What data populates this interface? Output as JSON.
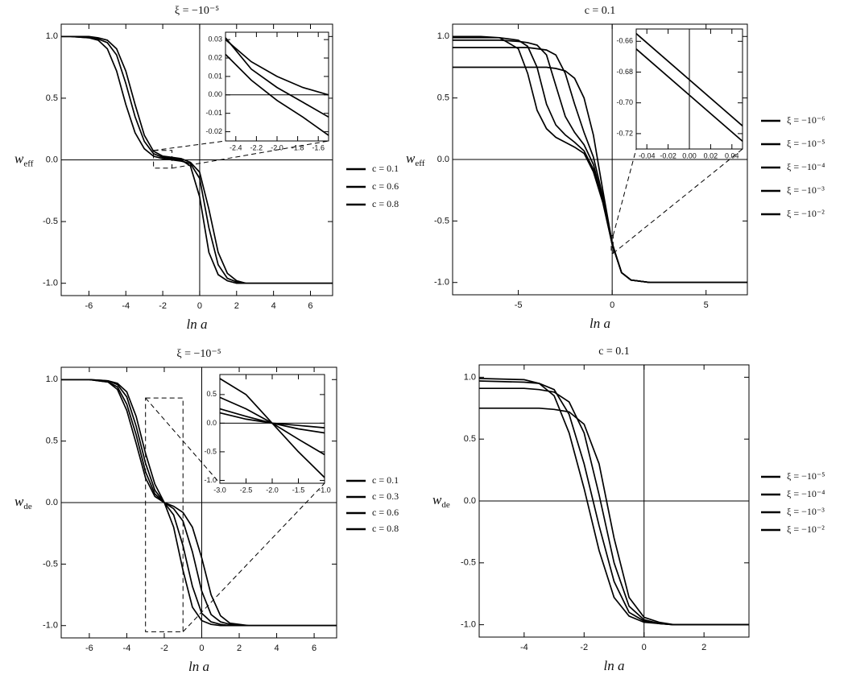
{
  "chart_data": [
    {
      "type": "line",
      "title": "ξ = −10⁻⁵",
      "xlabel": "ln a",
      "ylabel": "w",
      "ylabel_subscript": "eff",
      "x": [
        -7.5,
        -7,
        -6,
        -5.5,
        -5,
        -4.5,
        -4,
        -3.5,
        -3,
        -2.5,
        -2,
        -1.5,
        -1,
        -0.5,
        0,
        0.5,
        1,
        1.5,
        2,
        2.5,
        3,
        4,
        5,
        6,
        7.2
      ],
      "series": [
        {
          "name": "c = 0.1",
          "color": "#000000",
          "values": [
            1,
            1,
            0.99,
            0.97,
            0.9,
            0.72,
            0.45,
            0.22,
            0.09,
            0.03,
            0.01,
            0,
            -0.01,
            -0.03,
            -0.15,
            -0.55,
            -0.85,
            -0.96,
            -0.99,
            -1,
            -1,
            -1,
            -1,
            -1,
            -1
          ]
        },
        {
          "name": "c = 0.6",
          "color": "#000000",
          "values": [
            1,
            1,
            0.99,
            0.98,
            0.95,
            0.85,
            0.62,
            0.35,
            0.15,
            0.05,
            0.02,
            0.01,
            0,
            -0.05,
            -0.3,
            -0.75,
            -0.93,
            -0.98,
            -1,
            -1,
            -1,
            -1,
            -1,
            -1,
            -1
          ]
        },
        {
          "name": "c = 0.8",
          "color": "#000000",
          "values": [
            1,
            1,
            1,
            0.99,
            0.97,
            0.9,
            0.72,
            0.45,
            0.2,
            0.07,
            0.03,
            0.02,
            0.01,
            -0.02,
            -0.1,
            -0.4,
            -0.75,
            -0.92,
            -0.98,
            -1,
            -1,
            -1,
            -1,
            -1,
            -1
          ]
        }
      ],
      "xlim": [
        -7.5,
        7.2
      ],
      "ylim": [
        -1.1,
        1.1
      ],
      "xticks": [
        -6,
        -4,
        -2,
        0,
        2,
        4,
        6
      ],
      "yticks": [
        {
          "value": -1,
          "label": "-1.0"
        },
        -0.5,
        {
          "value": 0,
          "label": "0.0"
        },
        0.5,
        {
          "value": 1,
          "label": "1.0"
        }
      ]
    },
    {
      "type": "line",
      "x": [
        -2.5,
        -2.25,
        -2,
        -1.75,
        -1.5
      ],
      "series": [
        {
          "color": "#000000",
          "values": [
            0.03,
            0.018,
            0.01,
            0.004,
            0.0
          ]
        },
        {
          "color": "#000000",
          "values": [
            0.031,
            0.014,
            0.004,
            -0.004,
            -0.012
          ]
        },
        {
          "color": "#000000",
          "values": [
            0.022,
            0.008,
            -0.003,
            -0.012,
            -0.022
          ]
        }
      ],
      "xlim": [
        -2.5,
        -1.5
      ],
      "ylim": [
        -0.025,
        0.034
      ],
      "xticks": [
        -2.4,
        -2.2,
        {
          "value": -2,
          "label": "-2.0"
        },
        -1.8,
        -1.6
      ],
      "yticks": [
        -0.02,
        -0.01,
        {
          "value": 0,
          "label": "0.00"
        },
        0.01,
        0.02,
        0.03
      ]
    },
    {
      "type": "line",
      "title": "c = 0.1",
      "xlabel": "ln a",
      "ylabel": "w",
      "ylabel_subscript": "eff",
      "x": [
        -8.5,
        -7,
        -6,
        -5,
        -4.5,
        -4,
        -3.5,
        -3,
        -2.5,
        -2,
        -1.5,
        -1,
        -0.5,
        0,
        0.5,
        1,
        1.5,
        2,
        3,
        5,
        7.2
      ],
      "series": [
        {
          "name": "ξ = −10⁻⁶",
          "color": "#000000",
          "values": [
            1,
            1,
            0.99,
            0.9,
            0.7,
            0.4,
            0.25,
            0.18,
            0.14,
            0.1,
            0.05,
            -0.1,
            -0.35,
            -0.69,
            -0.92,
            -0.98,
            -0.99,
            -1,
            -1,
            -1,
            -1
          ]
        },
        {
          "name": "ξ = −10⁻⁵",
          "color": "#000000",
          "values": [
            0.99,
            0.99,
            0.99,
            0.97,
            0.92,
            0.75,
            0.45,
            0.28,
            0.2,
            0.14,
            0.07,
            -0.08,
            -0.34,
            -0.69,
            -0.92,
            -0.98,
            -0.99,
            -1,
            -1,
            -1,
            -1
          ]
        },
        {
          "name": "ξ = −10⁻⁴",
          "color": "#000000",
          "values": [
            0.97,
            0.97,
            0.97,
            0.96,
            0.95,
            0.93,
            0.85,
            0.6,
            0.35,
            0.22,
            0.12,
            -0.04,
            -0.33,
            -0.69,
            -0.92,
            -0.98,
            -0.99,
            -1,
            -1,
            -1,
            -1
          ]
        },
        {
          "name": "ξ = −10⁻³",
          "color": "#000000",
          "values": [
            0.91,
            0.91,
            0.91,
            0.91,
            0.91,
            0.9,
            0.89,
            0.85,
            0.7,
            0.45,
            0.22,
            0.02,
            -0.3,
            -0.69,
            -0.92,
            -0.98,
            -0.99,
            -1,
            -1,
            -1,
            -1
          ]
        },
        {
          "name": "ξ = −10⁻²",
          "color": "#000000",
          "values": [
            0.75,
            0.75,
            0.75,
            0.75,
            0.75,
            0.75,
            0.75,
            0.74,
            0.72,
            0.66,
            0.5,
            0.2,
            -0.25,
            -0.68,
            -0.92,
            -0.98,
            -0.99,
            -1,
            -1,
            -1,
            -1
          ]
        }
      ],
      "xlim": [
        -8.5,
        7.2
      ],
      "ylim": [
        -1.1,
        1.1
      ],
      "xticks": [
        -5,
        0,
        5
      ],
      "yticks": [
        {
          "value": -1,
          "label": "-1.0"
        },
        -0.5,
        {
          "value": 0,
          "label": "0.0"
        },
        0.5,
        {
          "value": 1,
          "label": "1.0"
        }
      ]
    },
    {
      "type": "line",
      "x": [
        -0.05,
        0.05
      ],
      "series": [
        {
          "color": "#000000",
          "values": [
            -0.655,
            -0.715
          ]
        },
        {
          "color": "#000000",
          "values": [
            -0.665,
            -0.725
          ]
        }
      ],
      "xlim": [
        -0.05,
        0.05
      ],
      "ylim": [
        -0.73,
        -0.652
      ],
      "xticks": [
        -0.04,
        -0.02,
        {
          "value": 0,
          "label": "0.00"
        },
        0.02,
        0.04
      ],
      "yticks": [
        -0.72,
        {
          "value": -0.7,
          "label": "-0.70"
        },
        -0.68,
        -0.66
      ]
    },
    {
      "type": "line",
      "title": "ξ = −10⁻⁵",
      "xlabel": "ln a",
      "ylabel": "w",
      "ylabel_subscript": "de",
      "x": [
        -7.5,
        -6,
        -5,
        -4.5,
        -4,
        -3.5,
        -3,
        -2.5,
        -2,
        -1.5,
        -1,
        -0.5,
        0,
        0.5,
        1,
        1.5,
        2,
        2.5,
        3,
        5,
        7.2
      ],
      "series": [
        {
          "name": "c = 0.1",
          "color": "#000000",
          "values": [
            1,
            1,
            0.99,
            0.97,
            0.9,
            0.7,
            0.4,
            0.15,
            0,
            -0.2,
            -0.55,
            -0.85,
            -0.96,
            -0.99,
            -1,
            -1,
            -1,
            -1,
            -1,
            -1,
            -1
          ]
        },
        {
          "name": "c = 0.3",
          "color": "#000000",
          "values": [
            1,
            1,
            0.99,
            0.96,
            0.86,
            0.62,
            0.32,
            0.1,
            0,
            -0.1,
            -0.35,
            -0.68,
            -0.9,
            -0.97,
            -0.99,
            -1,
            -1,
            -1,
            -1,
            -1,
            -1
          ]
        },
        {
          "name": "c = 0.6",
          "color": "#000000",
          "values": [
            1,
            1,
            0.98,
            0.94,
            0.8,
            0.55,
            0.25,
            0.07,
            0,
            -0.05,
            -0.15,
            -0.4,
            -0.72,
            -0.91,
            -0.97,
            -0.99,
            -1,
            -1,
            -1,
            -1,
            -1
          ]
        },
        {
          "name": "c = 0.8",
          "color": "#000000",
          "values": [
            1,
            1,
            0.98,
            0.92,
            0.75,
            0.48,
            0.2,
            0.05,
            0,
            -0.03,
            -0.08,
            -0.2,
            -0.45,
            -0.75,
            -0.92,
            -0.98,
            -0.99,
            -1,
            -1,
            -1,
            -1
          ]
        }
      ],
      "xlim": [
        -7.5,
        7.2
      ],
      "ylim": [
        -1.1,
        1.1
      ],
      "xticks": [
        -6,
        -4,
        -2,
        0,
        2,
        4,
        6
      ],
      "yticks": [
        {
          "value": -1,
          "label": "-1.0"
        },
        -0.5,
        {
          "value": 0,
          "label": "0.0"
        },
        0.5,
        {
          "value": 1,
          "label": "1.0"
        }
      ]
    },
    {
      "type": "line",
      "x": [
        -3,
        -2.5,
        -2,
        -1.5,
        -1
      ],
      "series": [
        {
          "color": "#000000",
          "values": [
            0.78,
            0.5,
            0,
            -0.5,
            -0.95
          ]
        },
        {
          "color": "#000000",
          "values": [
            0.45,
            0.25,
            0,
            -0.28,
            -0.55
          ]
        },
        {
          "color": "#000000",
          "values": [
            0.25,
            0.12,
            0,
            -0.1,
            -0.17
          ]
        },
        {
          "color": "#000000",
          "values": [
            0.18,
            0.07,
            0,
            -0.04,
            -0.08
          ]
        }
      ],
      "xlim": [
        -3,
        -1
      ],
      "ylim": [
        -1.05,
        0.85
      ],
      "xticks": [
        {
          "value": -3,
          "label": "-3.0"
        },
        -2.5,
        {
          "value": -2,
          "label": "-2.0"
        },
        -1.5,
        {
          "value": -1,
          "label": "-1.0"
        }
      ],
      "yticks": [
        {
          "value": -1,
          "label": "-1.0"
        },
        -0.5,
        {
          "value": 0,
          "label": "0.0"
        },
        0.5
      ]
    },
    {
      "type": "line",
      "title": "c = 0.1",
      "xlabel": "ln a",
      "ylabel": "w",
      "ylabel_subscript": "de",
      "x": [
        -5.5,
        -4,
        -3.5,
        -3,
        -2.5,
        -2,
        -1.5,
        -1,
        -0.5,
        0,
        0.5,
        1,
        2,
        3.5
      ],
      "series": [
        {
          "name": "ξ = −10⁻⁵",
          "color": "#000000",
          "values": [
            0.99,
            0.98,
            0.95,
            0.85,
            0.55,
            0.1,
            -0.4,
            -0.78,
            -0.93,
            -0.98,
            -0.99,
            -1,
            -1,
            -1
          ]
        },
        {
          "name": "ξ = −10⁻⁴",
          "color": "#000000",
          "values": [
            0.97,
            0.96,
            0.95,
            0.9,
            0.7,
            0.3,
            -0.2,
            -0.65,
            -0.9,
            -0.97,
            -0.99,
            -1,
            -1,
            -1
          ]
        },
        {
          "name": "ξ = −10⁻³",
          "color": "#000000",
          "values": [
            0.91,
            0.91,
            0.9,
            0.88,
            0.8,
            0.55,
            0.05,
            -0.5,
            -0.85,
            -0.96,
            -0.99,
            -1,
            -1,
            -1
          ]
        },
        {
          "name": "ξ = −10⁻²",
          "color": "#000000",
          "values": [
            0.75,
            0.75,
            0.75,
            0.74,
            0.72,
            0.62,
            0.3,
            -0.3,
            -0.78,
            -0.94,
            -0.98,
            -1,
            -1,
            -1
          ]
        }
      ],
      "xlim": [
        -5.5,
        3.5
      ],
      "ylim": [
        -1.1,
        1.1
      ],
      "xticks": [
        -4,
        -2,
        0,
        2
      ],
      "yticks": [
        {
          "value": -1,
          "label": "-1.0"
        },
        -0.5,
        {
          "value": 0,
          "label": "0.0"
        },
        0.5,
        {
          "value": 1,
          "label": "1.0"
        }
      ]
    }
  ]
}
